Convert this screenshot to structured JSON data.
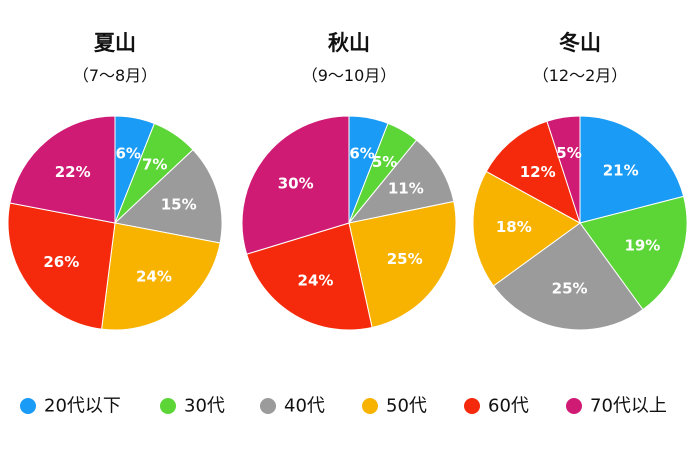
{
  "chart_data": {
    "type": "pie",
    "categories": [
      "20代以下",
      "30代",
      "40代",
      "50代",
      "60代",
      "70代以上"
    ],
    "colors": [
      "#1a9bf5",
      "#5cd537",
      "#9b9b9b",
      "#f7b300",
      "#f52a0c",
      "#d01b75"
    ],
    "charts": [
      {
        "title": "夏山",
        "subtitle": "（7〜8月）",
        "values": [
          6,
          7,
          15,
          24,
          26,
          22
        ],
        "labels": [
          "6%",
          "7%",
          "15%",
          "24%",
          "26%",
          "22%"
        ]
      },
      {
        "title": "秋山",
        "subtitle": "（9〜10月）",
        "values": [
          6,
          5,
          11,
          25,
          24,
          30
        ],
        "labels": [
          "6%",
          "5%",
          "11%",
          "25%",
          "24%",
          "30%"
        ]
      },
      {
        "title": "冬山",
        "subtitle": "（12〜2月）",
        "values": [
          21,
          19,
          25,
          18,
          12,
          5
        ],
        "labels": [
          "21%",
          "19%",
          "25%",
          "18%",
          "12%",
          "5%"
        ]
      }
    ],
    "legend_position": "bottom"
  }
}
